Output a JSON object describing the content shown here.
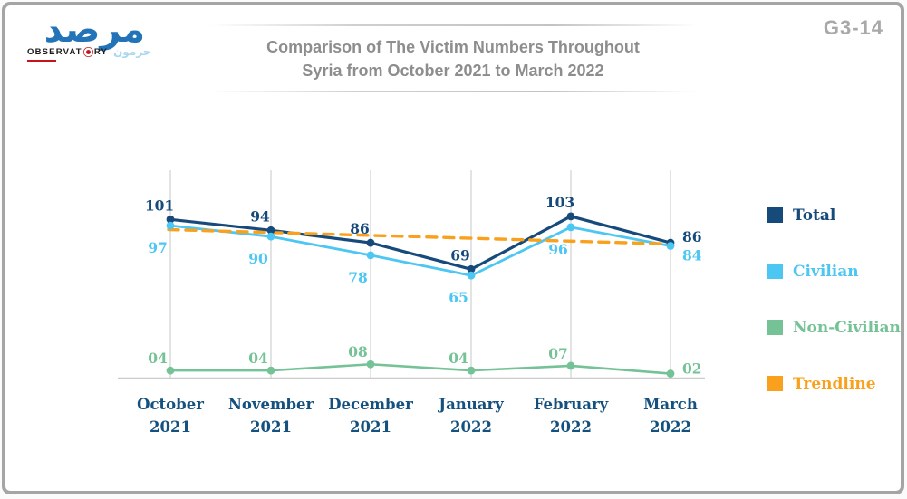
{
  "header": {
    "logo": {
      "arabic_main": "مرصد",
      "latin_left": "OBSERVAT",
      "latin_right": "RY",
      "arabic_small": "حرمون"
    },
    "title_line1": "Comparison of The Victim Numbers Throughout",
    "title_line2": "Syria from October 2021 to March 2022",
    "figure_code": "G3-14"
  },
  "colors": {
    "total": "#164a7b",
    "civilian": "#4cc6f2",
    "non_civilian": "#74c295",
    "trendline": "#f9a11d",
    "axis_label": "#14517e",
    "gridline": "#d0d0d0",
    "axis_line": "#cbcbcb",
    "title": "#8d8d8d",
    "logo_blue": "#2273b8",
    "logo_red": "#c5151c"
  },
  "chart_data": {
    "type": "line",
    "title": "Comparison of The Victim Numbers Throughout Syria from October 2021 to March 2022",
    "categories": [
      [
        "October",
        "2021"
      ],
      [
        "November",
        "2021"
      ],
      [
        "December",
        "2021"
      ],
      [
        "January",
        "2022"
      ],
      [
        "February",
        "2022"
      ],
      [
        "March",
        "2022"
      ]
    ],
    "series": [
      {
        "name": "Total",
        "color": "#164a7b",
        "values": [
          101,
          94,
          86,
          69,
          103,
          86
        ],
        "labels": [
          "101",
          "94",
          "86",
          "69",
          "103",
          "86"
        ]
      },
      {
        "name": "Civilian",
        "color": "#4cc6f2",
        "values": [
          97,
          90,
          78,
          65,
          96,
          84
        ],
        "labels": [
          "97",
          "90",
          "78",
          "65",
          "96",
          "84"
        ]
      },
      {
        "name": "Non-Civilian",
        "color": "#74c295",
        "values": [
          4,
          4,
          8,
          4,
          7,
          2
        ],
        "labels": [
          "04",
          "04",
          "08",
          "04",
          "07",
          "02"
        ]
      }
    ],
    "trendline": {
      "name": "Trendline",
      "color": "#f9a11d",
      "style": "dashed",
      "based_on": "Total"
    },
    "legend": {
      "position": "right",
      "entries": [
        "Total",
        "Civilian",
        "Non-Civilian",
        "Trendline"
      ]
    },
    "ylim": [
      0,
      133
    ],
    "grid": "vertical-only",
    "xlabel": "",
    "ylabel": ""
  }
}
